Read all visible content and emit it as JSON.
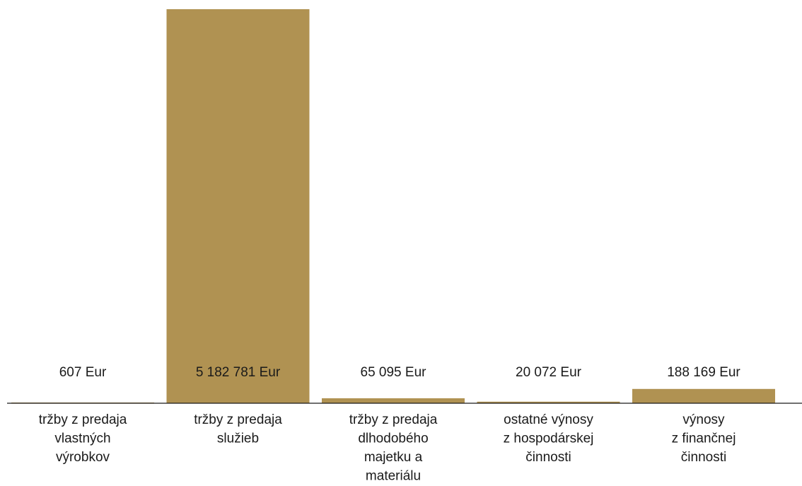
{
  "chart_data": {
    "type": "bar",
    "title": "",
    "xlabel": "",
    "ylabel": "",
    "grid": false,
    "legend": "none",
    "ylim": [
      0,
      5182781
    ],
    "categories": [
      [
        "tržby z predaja",
        "vlastných",
        "výrobkov"
      ],
      [
        "tržby z predaja",
        "služieb"
      ],
      [
        "tržby z predaja",
        "dlhodobého",
        "majetku a",
        "materiálu"
      ],
      [
        "ostatné výnosy",
        "z hospodárskej",
        "činnosti"
      ],
      [
        "výnosy",
        "z finančnej",
        "činnosti"
      ]
    ],
    "values": [
      607,
      5182781,
      65095,
      20072,
      188169
    ],
    "value_labels": [
      "607 Eur",
      "5 182 781 Eur",
      "65 095 Eur",
      "20 072 Eur",
      "188 169 Eur"
    ],
    "colors": {
      "bar": "#b09252",
      "text": "#1a1a1a",
      "axis": "#1a1a1a",
      "background": "#ffffff"
    }
  }
}
